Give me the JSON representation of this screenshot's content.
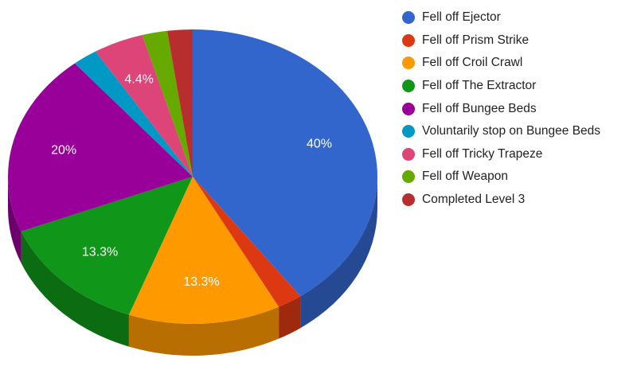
{
  "chart_data": {
    "type": "pie",
    "style": "3d",
    "start_angle_deg": 0,
    "direction": "clockwise",
    "legend_position": "right",
    "slices": [
      {
        "label": "Fell off Ejector",
        "value": 40.0,
        "display": "40%",
        "color": "#3366cc"
      },
      {
        "label": "Fell off Prism Strike",
        "value": 2.2,
        "display": "",
        "color": "#dc3912"
      },
      {
        "label": "Fell off Croil Crawl",
        "value": 13.3,
        "display": "13.3%",
        "color": "#ff9900"
      },
      {
        "label": "Fell off The Extractor",
        "value": 13.3,
        "display": "13.3%",
        "color": "#109618"
      },
      {
        "label": "Fell off Bungee Beds",
        "value": 20.0,
        "display": "20%",
        "color": "#990099"
      },
      {
        "label": "Voluntarily stop on Bungee Beds",
        "value": 2.2,
        "display": "",
        "color": "#0099c6"
      },
      {
        "label": "Fell off Tricky Trapeze",
        "value": 4.4,
        "display": "4.4%",
        "color": "#dd4477"
      },
      {
        "label": "Fell off Weapon",
        "value": 2.2,
        "display": "",
        "color": "#66aa00"
      },
      {
        "label": "Completed Level 3",
        "value": 2.2,
        "display": "",
        "color": "#b82e2e"
      }
    ]
  }
}
